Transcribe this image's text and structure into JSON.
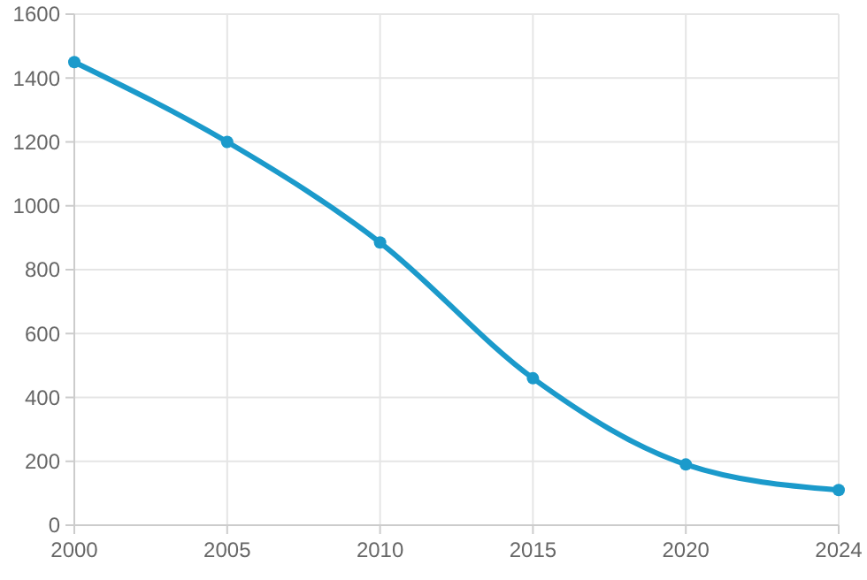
{
  "chart_data": {
    "type": "line",
    "categories": [
      "2000",
      "2005",
      "2010",
      "2015",
      "2020",
      "2024"
    ],
    "series": [
      {
        "color": "#1b9acb",
        "values": [
          1450,
          1200,
          885,
          460,
          190,
          110
        ]
      }
    ],
    "ylim": [
      0,
      1600
    ],
    "yticks": [
      0,
      200,
      400,
      600,
      800,
      1000,
      1200,
      1400,
      1600
    ],
    "grid": true,
    "marker": "circle",
    "line_style": "solid"
  }
}
